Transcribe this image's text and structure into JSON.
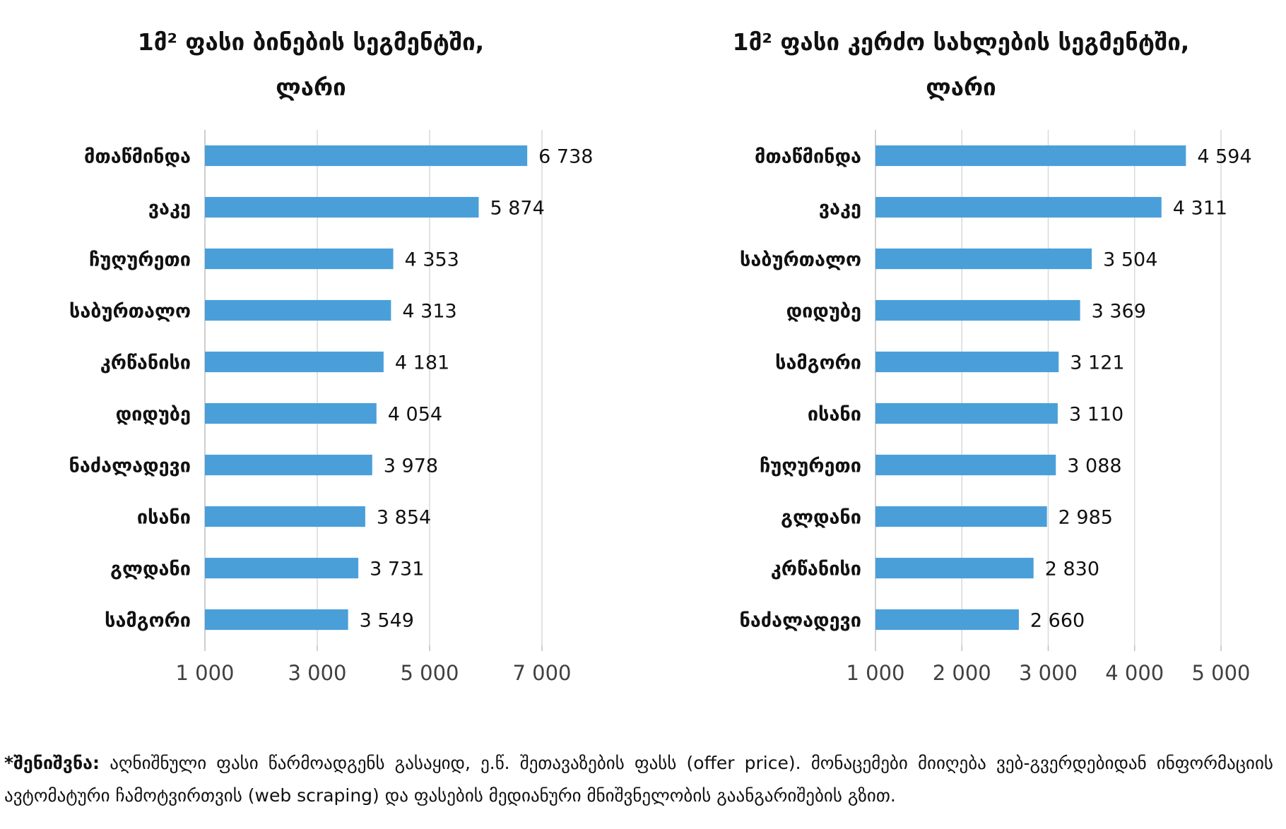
{
  "chart_data": [
    {
      "type": "bar",
      "orientation": "horizontal",
      "title": "1მ² ფასი ბინების სეგმენტში,",
      "title_line2": "ლარი",
      "categories": [
        "მთაწმინდა",
        "ვაკე",
        "ჩუღურეთი",
        "საბურთალო",
        "კრწანისი",
        "დიდუბე",
        "ნაძალადევი",
        "ისანი",
        "გლდანი",
        "სამგორი"
      ],
      "values": [
        6738,
        5874,
        4353,
        4313,
        4181,
        4054,
        3978,
        3854,
        3731,
        3549
      ],
      "value_labels": [
        "6 738",
        "5 874",
        "4 353",
        "4 313",
        "4 181",
        "4 054",
        "3 978",
        "3 854",
        "3 731",
        "3 549"
      ],
      "xlim": [
        1000,
        7000
      ],
      "xticks": [
        1000,
        3000,
        5000,
        7000
      ],
      "xtick_labels": [
        "1 000",
        "3 000",
        "5 000",
        "7 000"
      ],
      "grid": true,
      "xlabel": "",
      "ylabel": "",
      "color": "#4a9fd9"
    },
    {
      "type": "bar",
      "orientation": "horizontal",
      "title": "1მ² ფასი კერძო სახლების სეგმენტში,",
      "title_line2": "ლარი",
      "categories": [
        "მთაწმინდა",
        "ვაკე",
        "საბურთალო",
        "დიდუბე",
        "სამგორი",
        "ისანი",
        "ჩუღურეთი",
        "გლდანი",
        "კრწანისი",
        "ნაძალადევი"
      ],
      "values": [
        4594,
        4311,
        3504,
        3369,
        3121,
        3110,
        3088,
        2985,
        2830,
        2660
      ],
      "value_labels": [
        "4 594",
        "4 311",
        "3 504",
        "3 369",
        "3 121",
        "3 110",
        "3 088",
        "2 985",
        "2 830",
        "2 660"
      ],
      "xlim": [
        1000,
        5000
      ],
      "xticks": [
        1000,
        2000,
        3000,
        4000,
        5000
      ],
      "xtick_labels": [
        "1 000",
        "2 000",
        "3 000",
        "4 000",
        "5 000"
      ],
      "grid": true,
      "xlabel": "",
      "ylabel": "",
      "color": "#4a9fd9"
    }
  ],
  "note": {
    "label": "*შენიშვნა:",
    "text": " აღნიშნული ფასი წარმოადგენს გასაყიდ, ე.წ. შეთავაზების ფასს (offer price). მონაცემები მიიღება ვებ-გვერდებიდან ინფორმაციის ავტომატური ჩამოტვირთვის (web scraping) და ფასების მედიანური მნიშვნელობის გაანგარიშების გზით."
  },
  "colors": {
    "bar": "#4a9fd9",
    "grid": "#d9d9d9",
    "axis": "#bfbfbf",
    "text": "#111111",
    "tick_text": "#404040"
  }
}
